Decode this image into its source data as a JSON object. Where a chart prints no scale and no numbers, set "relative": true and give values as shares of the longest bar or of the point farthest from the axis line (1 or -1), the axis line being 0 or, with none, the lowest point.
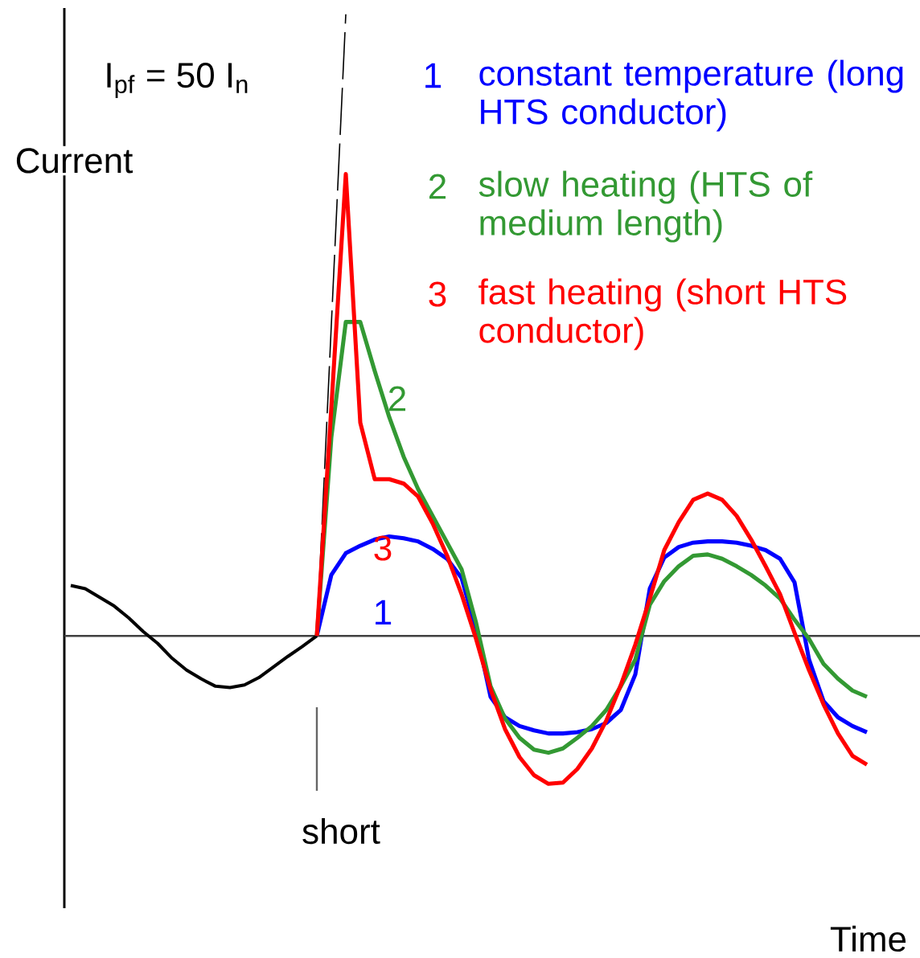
{
  "chart_data": {
    "type": "line",
    "relative": true,
    "ylabel": "Current",
    "legend": "top right",
    "categories": [
      null,
      null,
      null,
      null,
      null,
      null,
      null,
      null,
      null,
      null,
      null,
      null,
      null,
      null,
      null,
      null,
      null,
      null,
      null,
      null,
      null,
      null,
      null,
      null,
      null,
      null,
      null,
      null,
      null,
      null,
      null,
      null,
      null,
      null,
      null,
      null,
      null,
      null,
      null,
      null,
      null,
      null,
      null,
      null,
      null,
      null,
      null,
      null,
      null,
      null,
      null,
      null,
      null,
      null,
      null,
      null
    ],
    "annotations": [
      "I$_{pf}$ = 50 I$_{n}$",
      "short",
      "1",
      "2",
      "3",
      "2",
      "3",
      "1",
      "Time"
    ],
    "series": [
      {
        "color": "#000000",
        "values": [
          0.081,
          0.076,
          0.062,
          0.048,
          0.029,
          0.007,
          -0.012,
          -0.036,
          -0.055,
          -0.069,
          -0.081,
          -0.083,
          -0.079,
          -0.067,
          -0.05,
          -0.033,
          -0.017,
          0,
          null,
          null,
          null,
          null,
          null,
          null,
          null,
          null,
          null,
          null,
          null,
          null,
          null,
          null,
          null,
          null,
          null,
          null,
          null,
          null,
          null,
          null,
          null,
          null,
          null,
          null,
          null,
          null,
          null,
          null,
          null,
          null,
          null,
          null,
          null,
          null,
          null,
          null
        ]
      },
      {
        "color": "#000000",
        "line_style": "dashed",
        "values": [
          null,
          null,
          null,
          null,
          null,
          null,
          null,
          null,
          null,
          null,
          null,
          null,
          null,
          null,
          null,
          null,
          null,
          0,
          0.5,
          1,
          null,
          null,
          null,
          null,
          null,
          null,
          null,
          null,
          null,
          null,
          null,
          null,
          null,
          null,
          null,
          null,
          null,
          null,
          null,
          null,
          null,
          null,
          null,
          null,
          null,
          null,
          null,
          null,
          null,
          null,
          null,
          null,
          null,
          null,
          null,
          null
        ]
      },
      {
        "name": "constant temperature (long HTS conductor)",
        "color": "#0000ff",
        "values": [
          null,
          null,
          null,
          null,
          null,
          null,
          null,
          null,
          null,
          null,
          null,
          null,
          null,
          null,
          null,
          null,
          null,
          0,
          0.098,
          0.133,
          0.145,
          0.155,
          0.16,
          0.157,
          0.152,
          0.14,
          0.124,
          0.093,
          0.01,
          -0.098,
          -0.131,
          -0.145,
          -0.152,
          -0.157,
          -0.157,
          -0.155,
          -0.15,
          -0.14,
          -0.119,
          -0.062,
          0.076,
          0.126,
          0.143,
          0.15,
          0.152,
          0.152,
          0.15,
          0.145,
          0.138,
          0.124,
          0.086,
          -0.038,
          -0.105,
          -0.131,
          -0.145,
          -0.155
        ]
      },
      {
        "name": "slow heating (HTS of medium length)",
        "color": "#339933",
        "values": [
          null,
          null,
          null,
          null,
          null,
          null,
          null,
          null,
          null,
          null,
          null,
          null,
          null,
          null,
          null,
          null,
          null,
          0,
          0.319,
          0.505,
          0.505,
          0.426,
          0.352,
          0.288,
          0.236,
          0.193,
          0.15,
          0.107,
          0.021,
          -0.081,
          -0.133,
          -0.164,
          -0.183,
          -0.188,
          -0.181,
          -0.164,
          -0.145,
          -0.119,
          -0.081,
          -0.038,
          0.05,
          0.088,
          0.112,
          0.129,
          0.131,
          0.124,
          0.112,
          0.098,
          0.081,
          0.06,
          0.026,
          -0.005,
          -0.045,
          -0.069,
          -0.088,
          -0.098
        ]
      },
      {
        "name": "fast heating (short HTS conductor)",
        "color": "#ff0000",
        "values": [
          null,
          null,
          null,
          null,
          null,
          null,
          null,
          null,
          null,
          null,
          null,
          null,
          null,
          null,
          null,
          null,
          null,
          0,
          0.367,
          0.743,
          0.343,
          0.252,
          0.252,
          0.245,
          0.224,
          0.181,
          0.129,
          0.067,
          -0.005,
          -0.086,
          -0.15,
          -0.195,
          -0.224,
          -0.238,
          -0.236,
          -0.214,
          -0.181,
          -0.136,
          -0.079,
          -0.014,
          0.06,
          0.138,
          0.183,
          0.219,
          0.229,
          0.219,
          0.193,
          0.155,
          0.112,
          0.067,
          0.005,
          -0.055,
          -0.11,
          -0.157,
          -0.193,
          -0.207
        ]
      }
    ]
  }
}
